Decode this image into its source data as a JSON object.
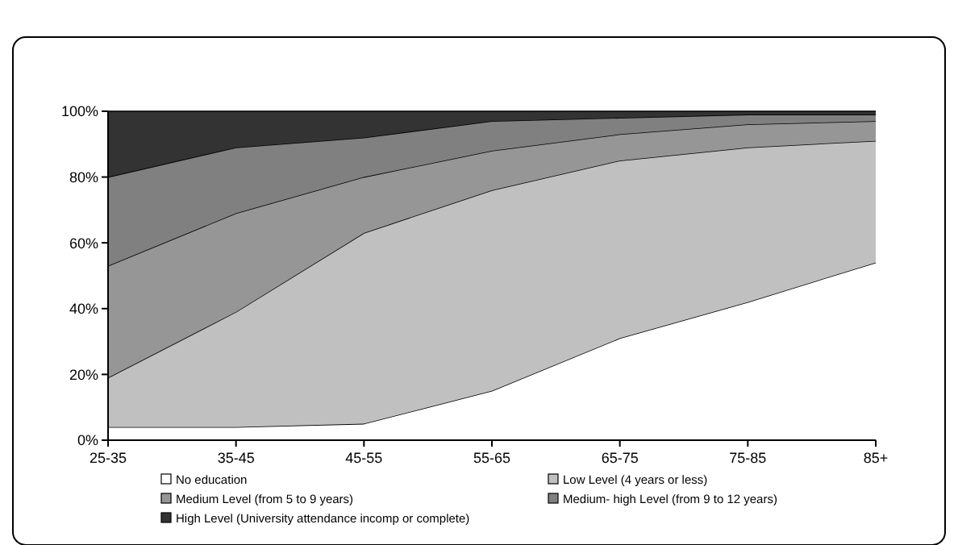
{
  "chart_data": {
    "type": "area",
    "stacked": true,
    "categories": [
      "25-35",
      "35-45",
      "45-55",
      "55-65",
      "65-75",
      "75-85",
      "85+"
    ],
    "series": [
      {
        "name": "No education",
        "color": "#ffffff",
        "values": [
          4,
          4,
          5,
          15,
          31,
          42,
          54
        ]
      },
      {
        "name": "Low  Level (4 years or less)",
        "color": "#c0c0c0",
        "values": [
          15,
          35,
          58,
          61,
          54,
          47,
          37
        ]
      },
      {
        "name": "Medium Level (from 5 to 9 years)",
        "color": "#969696",
        "values": [
          34,
          30,
          17,
          12,
          8,
          7,
          6
        ]
      },
      {
        "name": "Medium- high Level (from 9 to 12 years)",
        "color": "#808080",
        "values": [
          27,
          20,
          12,
          9,
          5,
          3,
          2
        ]
      },
      {
        "name": "High Level (University attendance incomp or complete)",
        "color": "#333333",
        "values": [
          20,
          11,
          8,
          3,
          2,
          1,
          1
        ]
      }
    ],
    "ylim": [
      0,
      100
    ],
    "yticks": [
      {
        "value": 0,
        "label": "0%"
      },
      {
        "value": 20,
        "label": "20%"
      },
      {
        "value": 40,
        "label": "40%"
      },
      {
        "value": 60,
        "label": "60%"
      },
      {
        "value": 80,
        "label": "80%"
      },
      {
        "value": 100,
        "label": "100%"
      }
    ],
    "grid": false,
    "legend": "bottom"
  }
}
